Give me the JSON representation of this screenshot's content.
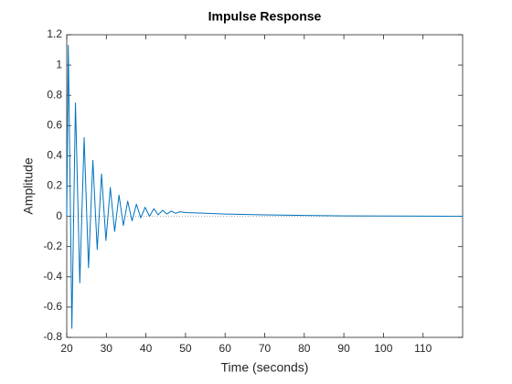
{
  "chart_data": {
    "type": "line",
    "title": "Impulse Response",
    "xlabel": "Time (seconds)",
    "ylabel": "Amplitude",
    "x": [
      20,
      20.4,
      21.3,
      22.2,
      23.3,
      24.4,
      25.5,
      26.6,
      27.7,
      28.8,
      29.9,
      31.0,
      32.1,
      33.2,
      34.3,
      35.4,
      36.5,
      37.6,
      38.7,
      39.8,
      40.9,
      42,
      43.1,
      44.2,
      45.3,
      46.4,
      47.5,
      48.6,
      50,
      55,
      60,
      70,
      80,
      90,
      100,
      110,
      120
    ],
    "values": [
      0,
      1.13,
      -0.74,
      0.75,
      -0.44,
      0.52,
      -0.34,
      0.37,
      -0.22,
      0.28,
      -0.16,
      0.19,
      -0.1,
      0.14,
      -0.06,
      0.1,
      -0.03,
      0.08,
      -0.01,
      0.06,
      0.0,
      0.05,
      0.01,
      0.04,
      0.015,
      0.035,
      0.02,
      0.03,
      0.025,
      0.02,
      0.015,
      0.01,
      0.006,
      0.003,
      0.002,
      0.001,
      0
    ],
    "color": "#0072bd",
    "reference_line": 0,
    "xlim": [
      20,
      120
    ],
    "ylim": [
      -0.8,
      1.2
    ],
    "xticks": [
      20,
      30,
      40,
      50,
      60,
      70,
      80,
      90,
      100,
      110
    ],
    "yticks": [
      -0.8,
      -0.6,
      -0.4,
      -0.2,
      0,
      0.2,
      0.4,
      0.6,
      0.8,
      1,
      1.2
    ],
    "grid": false
  }
}
